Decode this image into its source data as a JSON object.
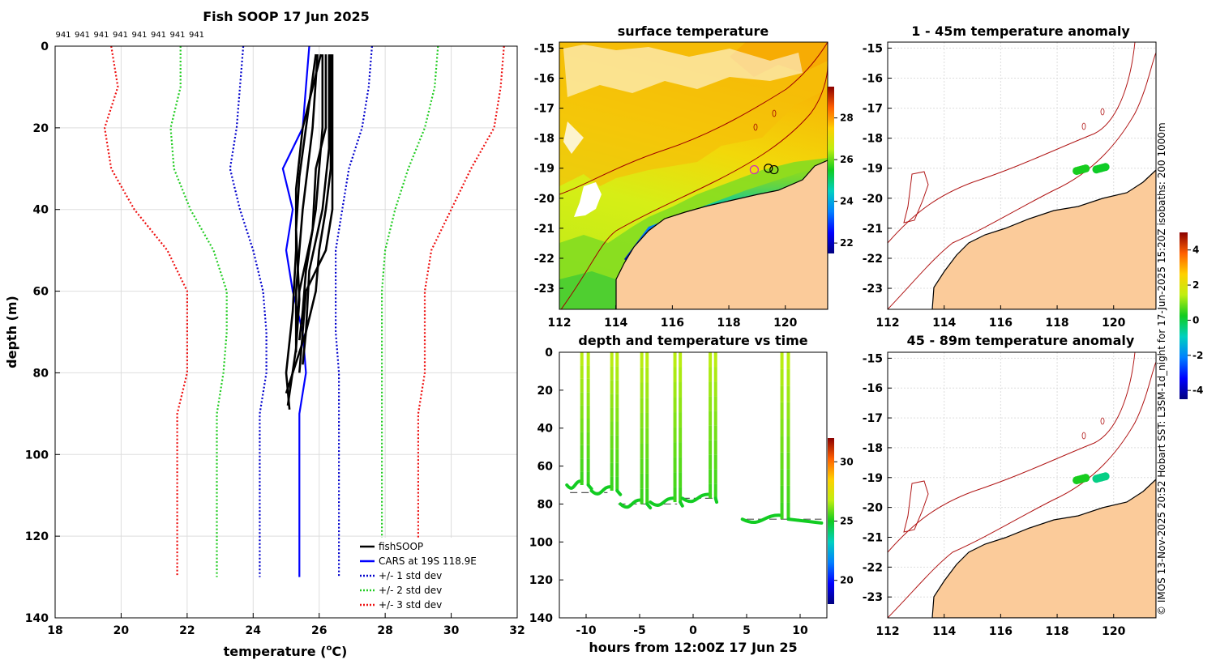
{
  "figure_title": "Fish SOOP 17 Jun 2025",
  "side_note": "© IMOS 13-Nov-2025 20:52 Hobart SST: L3SM-1d_night for 17-Jun-2025 15:20Z isobaths: 200  1000m",
  "colors": {
    "fishsoop": "#000000",
    "cars": "#0000ff",
    "std1": "#0000cc",
    "std2": "#22cc22",
    "std3": "#ee1111",
    "land": "#fbcb9a",
    "isobath": "#b01515",
    "grid": "#dddddd"
  },
  "chart_data": [
    {
      "type": "line",
      "name": "profile",
      "title": "Fish SOOP 17 Jun 2025",
      "top_labels": [
        "941",
        "941",
        "941",
        "941",
        "941",
        "941",
        "941",
        "941"
      ],
      "xlabel_prefix": "temperature (",
      "xlabel_unit": "o",
      "xlabel_suffix": "C)",
      "ylabel": "depth (m)",
      "xlim": [
        18,
        32
      ],
      "ylim": [
        0,
        140
      ],
      "xticks": [
        "18",
        "20",
        "22",
        "24",
        "26",
        "28",
        "30",
        "32"
      ],
      "yticks": [
        "0",
        "20",
        "40",
        "60",
        "80",
        "100",
        "120",
        "140"
      ],
      "legend": [
        {
          "label": "fishSOOP",
          "color": "#000000",
          "style": "solid"
        },
        {
          "label": "CARS at 19S 118.9E",
          "color": "#0000ff",
          "style": "solid"
        },
        {
          "label": "+/- 1 std dev",
          "color": "#0000cc",
          "style": "dotted"
        },
        {
          "label": "+/- 2 std dev",
          "color": "#22cc22",
          "style": "dotted"
        },
        {
          "label": "+/- 3 std dev",
          "color": "#ee1111",
          "style": "dotted"
        }
      ],
      "legend_position": "bottom-right",
      "depths": [
        0,
        10,
        20,
        30,
        40,
        50,
        60,
        70,
        80,
        90,
        130
      ],
      "cars_mean": [
        25.7,
        25.6,
        25.5,
        24.9,
        25.2,
        25.0,
        25.2,
        25.5,
        25.6,
        25.4,
        25.4
      ],
      "std_bands": [
        {
          "level": 1,
          "left": [
            23.7,
            23.6,
            23.5,
            23.3,
            23.6,
            24.0,
            24.3,
            24.4,
            24.4,
            24.2,
            24.2
          ],
          "right": [
            27.6,
            27.5,
            27.3,
            26.9,
            26.7,
            26.5,
            26.5,
            26.5,
            26.6,
            26.6,
            26.6
          ]
        },
        {
          "level": 2,
          "left": [
            21.8,
            21.8,
            21.5,
            21.6,
            22.1,
            22.8,
            23.2,
            23.2,
            23.1,
            22.9,
            22.9
          ],
          "right": [
            29.6,
            29.5,
            29.2,
            28.7,
            28.3,
            28.0,
            27.9,
            27.9,
            27.9,
            27.9,
            27.9
          ]
        },
        {
          "level": 3,
          "left": [
            19.7,
            19.9,
            19.5,
            19.7,
            20.4,
            21.4,
            22.0,
            22.0,
            22.0,
            21.7,
            21.7
          ],
          "right": [
            31.6,
            31.5,
            31.3,
            30.6,
            30.0,
            29.4,
            29.2,
            29.2,
            29.2,
            29.0,
            29.0
          ]
        }
      ],
      "fishsoop_profiles": [
        {
          "depth": [
            2,
            20,
            40,
            60,
            70,
            75
          ],
          "temp": [
            25.95,
            25.8,
            25.5,
            25.3,
            25.3,
            25.3
          ]
        },
        {
          "depth": [
            2,
            20,
            40,
            55,
            65,
            72
          ],
          "temp": [
            26.1,
            26.1,
            25.9,
            25.6,
            25.5,
            25.4
          ]
        },
        {
          "depth": [
            2,
            20,
            30,
            45,
            60,
            72
          ],
          "temp": [
            26.2,
            26.2,
            25.9,
            25.8,
            25.4,
            25.3
          ]
        },
        {
          "depth": [
            2,
            25,
            40,
            55,
            70,
            78
          ],
          "temp": [
            26.3,
            26.3,
            26.1,
            25.7,
            25.6,
            25.5
          ]
        },
        {
          "depth": [
            2,
            22,
            40,
            50,
            60,
            70,
            80
          ],
          "temp": [
            26.4,
            26.4,
            26.4,
            26.2,
            25.6,
            25.5,
            25.4
          ]
        },
        {
          "depth": [
            2,
            20,
            35,
            50,
            65,
            80,
            89
          ],
          "temp": [
            26.05,
            25.5,
            25.3,
            25.3,
            25.2,
            25.0,
            25.1
          ]
        },
        {
          "depth": [
            2,
            30,
            40,
            50,
            60,
            70,
            85
          ],
          "temp": [
            26.35,
            26.35,
            26.2,
            26.0,
            25.9,
            25.6,
            25.0
          ]
        },
        {
          "depth": [
            2,
            20,
            32,
            45,
            62,
            74,
            88
          ],
          "temp": [
            25.9,
            25.6,
            25.4,
            25.3,
            25.4,
            25.3,
            25.05
          ]
        }
      ]
    },
    {
      "type": "heatmap",
      "name": "surface-temperature-map",
      "title": "surface temperature",
      "xlim": [
        112,
        121.5
      ],
      "ylim": [
        -23.7,
        -14.8
      ],
      "xticks": [
        "112",
        "114",
        "116",
        "118",
        "120"
      ],
      "yticks": [
        "-15",
        "-16",
        "-17",
        "-18",
        "-19",
        "-20",
        "-21",
        "-22",
        "-23"
      ],
      "colorbar": {
        "min": 21.5,
        "max": 29.5,
        "ticks": [
          "22",
          "24",
          "26",
          "28"
        ]
      },
      "markers": [
        {
          "lon": 118.9,
          "lat": -19.05
        },
        {
          "lon": 119.4,
          "lat": -19.0
        },
        {
          "lon": 119.6,
          "lat": -19.05
        }
      ]
    },
    {
      "type": "scatter",
      "name": "depth-temperature-vs-time",
      "title": "depth and temperature vs time",
      "xlabel": "hours from 12:00Z 17 Jun 25",
      "xlim": [
        -12.5,
        12.5
      ],
      "ylim": [
        0,
        140
      ],
      "xticks": [
        "-10",
        "-5",
        "0",
        "5",
        "10"
      ],
      "yticks": [
        "0",
        "20",
        "40",
        "60",
        "80",
        "100",
        "120",
        "140"
      ],
      "colorbar": {
        "min": 18,
        "max": 32,
        "ticks": [
          "20",
          "25",
          "30"
        ]
      },
      "casts": [
        {
          "start": -11.8,
          "bottom": 70,
          "descent": -10.4,
          "ascent": -9.8,
          "end": -9.5
        },
        {
          "start": -9.5,
          "bottom": 73,
          "descent": -7.6,
          "ascent": -7.1,
          "end": -6.8
        },
        {
          "start": -6.8,
          "bottom": 80,
          "descent": -4.8,
          "ascent": -4.3,
          "end": -4.0
        },
        {
          "start": -4.0,
          "bottom": 79,
          "descent": -1.7,
          "ascent": -1.2,
          "end": -1.0
        },
        {
          "start": -1.0,
          "bottom": 77,
          "descent": 1.6,
          "ascent": 2.1,
          "end": 2.2
        },
        {
          "start": 4.6,
          "bottom": 88,
          "descent": 8.3,
          "ascent": 8.9,
          "end": 12.0
        }
      ],
      "seafloor": [
        {
          "x0": -11.5,
          "x1": -8.0,
          "depth": 74
        },
        {
          "x0": -7.0,
          "x1": -1.5,
          "depth": 80
        },
        {
          "x0": -1.0,
          "x1": 2.0,
          "depth": 77
        },
        {
          "x0": 5.0,
          "x1": 12.0,
          "depth": 88
        }
      ]
    },
    {
      "type": "heatmap",
      "name": "anomaly-map-1-45m",
      "title": "1 - 45m temperature anomaly",
      "xlim": [
        112,
        121.5
      ],
      "ylim": [
        -23.7,
        -14.8
      ],
      "xticks": [
        "112",
        "114",
        "116",
        "118",
        "120"
      ],
      "yticks": [
        "-15",
        "-16",
        "-17",
        "-18",
        "-19",
        "-20",
        "-21",
        "-22",
        "-23"
      ],
      "points": [
        {
          "lon": 118.85,
          "lat": -19.05,
          "anomaly": 0.3
        },
        {
          "lon": 119.55,
          "lat": -19.0,
          "anomaly": 0.2
        }
      ]
    },
    {
      "type": "heatmap",
      "name": "anomaly-map-45-89m",
      "title": "45 - 89m temperature anomaly",
      "xlim": [
        112,
        121.5
      ],
      "ylim": [
        -23.7,
        -14.8
      ],
      "xticks": [
        "112",
        "114",
        "116",
        "118",
        "120"
      ],
      "yticks": [
        "-15",
        "-16",
        "-17",
        "-18",
        "-19",
        "-20",
        "-21",
        "-22",
        "-23"
      ],
      "points": [
        {
          "lon": 118.85,
          "lat": -19.05,
          "anomaly": 0.3
        },
        {
          "lon": 119.55,
          "lat": -19.0,
          "anomaly": -0.5
        }
      ]
    },
    {
      "type": "heatmap",
      "name": "anomaly-colorbar",
      "colorbar": {
        "min": -4.5,
        "max": 5,
        "ticks": [
          "4",
          "2",
          "0",
          "-2",
          "-4"
        ]
      }
    }
  ]
}
